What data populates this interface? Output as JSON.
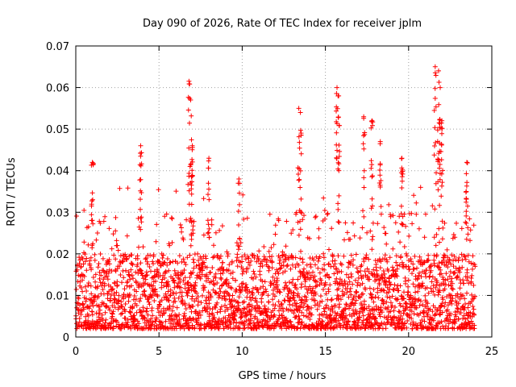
{
  "chart_data": {
    "type": "scatter",
    "title": "Day 090 of 2026, Rate Of TEC Index for receiver jplm",
    "xlabel": "GPS time / hours",
    "ylabel": "ROTI / TECUs",
    "xlim": [
      0,
      25
    ],
    "ylim": [
      0,
      0.07
    ],
    "x_ticks": [
      0,
      5,
      10,
      15,
      20,
      25
    ],
    "x_tick_labels": [
      "0",
      "5",
      "10",
      "15",
      "20",
      "25"
    ],
    "y_ticks": [
      0,
      0.01,
      0.02,
      0.03,
      0.04,
      0.05,
      0.06,
      0.07
    ],
    "y_tick_labels": [
      "0",
      "0.01",
      "0.02",
      "0.03",
      "0.04",
      "0.05",
      "0.06",
      "0.07"
    ],
    "grid": true,
    "marker": "+",
    "series": [
      {
        "name": "ROTI",
        "color": "#ff0000",
        "x_range": [
          0,
          24
        ],
        "typical_range": [
          0.002,
          0.02
        ],
        "peaks": [
          {
            "x": 1.0,
            "y": 0.042
          },
          {
            "x": 3.9,
            "y": 0.046
          },
          {
            "x": 6.8,
            "y": 0.0615
          },
          {
            "x": 6.9,
            "y": 0.057
          },
          {
            "x": 7.0,
            "y": 0.046
          },
          {
            "x": 8.0,
            "y": 0.043
          },
          {
            "x": 9.8,
            "y": 0.038
          },
          {
            "x": 13.4,
            "y": 0.055
          },
          {
            "x": 13.5,
            "y": 0.054
          },
          {
            "x": 15.7,
            "y": 0.06
          },
          {
            "x": 15.8,
            "y": 0.058
          },
          {
            "x": 17.3,
            "y": 0.053
          },
          {
            "x": 17.8,
            "y": 0.052
          },
          {
            "x": 18.3,
            "y": 0.047
          },
          {
            "x": 19.6,
            "y": 0.043
          },
          {
            "x": 21.6,
            "y": 0.065
          },
          {
            "x": 21.8,
            "y": 0.064
          },
          {
            "x": 21.9,
            "y": 0.06
          },
          {
            "x": 22.0,
            "y": 0.052
          },
          {
            "x": 23.5,
            "y": 0.042
          }
        ]
      }
    ]
  }
}
